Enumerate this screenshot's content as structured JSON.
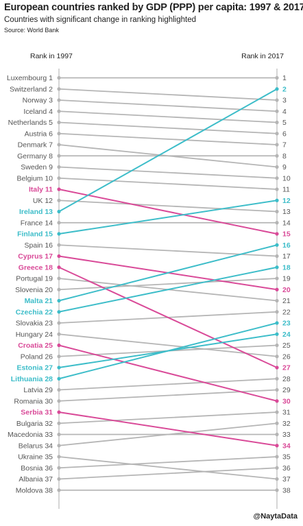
{
  "title": "European countries ranked by GDP (PPP) per capita: 1997 & 2017",
  "subtitle": "Countries with significant change in ranking highlighted",
  "source": "Source: World Bank",
  "credit": "@NaytaData",
  "colors": {
    "neutral": "#b5b5b5",
    "rise": "#3dbdc9",
    "fall": "#d94a98",
    "axis": "#c8c8c8",
    "text": "#555555"
  },
  "chart_data": {
    "type": "slope",
    "xlabel_left": "Rank in 1997",
    "xlabel_right": "Rank in 2017",
    "series": [
      {
        "country": "Luxembourg",
        "rank1997": 1,
        "rank2017": 1,
        "highlight": "none"
      },
      {
        "country": "Switzerland",
        "rank1997": 2,
        "rank2017": 3,
        "highlight": "none"
      },
      {
        "country": "Norway",
        "rank1997": 3,
        "rank2017": 4,
        "highlight": "none"
      },
      {
        "country": "Iceland",
        "rank1997": 4,
        "rank2017": 5,
        "highlight": "none"
      },
      {
        "country": "Netherlands",
        "rank1997": 5,
        "rank2017": 6,
        "highlight": "none"
      },
      {
        "country": "Austria",
        "rank1997": 6,
        "rank2017": 7,
        "highlight": "none"
      },
      {
        "country": "Denmark",
        "rank1997": 7,
        "rank2017": 9,
        "highlight": "none"
      },
      {
        "country": "Germany",
        "rank1997": 8,
        "rank2017": 8,
        "highlight": "none"
      },
      {
        "country": "Sweden",
        "rank1997": 9,
        "rank2017": 10,
        "highlight": "none"
      },
      {
        "country": "Belgium",
        "rank1997": 10,
        "rank2017": 11,
        "highlight": "none"
      },
      {
        "country": "Italy",
        "rank1997": 11,
        "rank2017": 15,
        "highlight": "fall"
      },
      {
        "country": "UK",
        "rank1997": 12,
        "rank2017": 13,
        "highlight": "none"
      },
      {
        "country": "Ireland",
        "rank1997": 13,
        "rank2017": 2,
        "highlight": "rise"
      },
      {
        "country": "France",
        "rank1997": 14,
        "rank2017": 14,
        "highlight": "none"
      },
      {
        "country": "Finland",
        "rank1997": 15,
        "rank2017": 12,
        "highlight": "rise"
      },
      {
        "country": "Spain",
        "rank1997": 16,
        "rank2017": 17,
        "highlight": "none"
      },
      {
        "country": "Cyprus",
        "rank1997": 17,
        "rank2017": 20,
        "highlight": "fall"
      },
      {
        "country": "Greece",
        "rank1997": 18,
        "rank2017": 27,
        "highlight": "fall"
      },
      {
        "country": "Portugal",
        "rank1997": 19,
        "rank2017": 21,
        "highlight": "none"
      },
      {
        "country": "Slovenia",
        "rank1997": 20,
        "rank2017": 19,
        "highlight": "none"
      },
      {
        "country": "Malta",
        "rank1997": 21,
        "rank2017": 16,
        "highlight": "rise"
      },
      {
        "country": "Czechia",
        "rank1997": 22,
        "rank2017": 18,
        "highlight": "rise"
      },
      {
        "country": "Slovakia",
        "rank1997": 23,
        "rank2017": 22,
        "highlight": "none"
      },
      {
        "country": "Hungary",
        "rank1997": 24,
        "rank2017": 26,
        "highlight": "none"
      },
      {
        "country": "Croatia",
        "rank1997": 25,
        "rank2017": 30,
        "highlight": "fall"
      },
      {
        "country": "Poland",
        "rank1997": 26,
        "rank2017": 25,
        "highlight": "none"
      },
      {
        "country": "Estonia",
        "rank1997": 27,
        "rank2017": 24,
        "highlight": "rise"
      },
      {
        "country": "Lithuania",
        "rank1997": 28,
        "rank2017": 23,
        "highlight": "rise"
      },
      {
        "country": "Latvia",
        "rank1997": 29,
        "rank2017": 28,
        "highlight": "none"
      },
      {
        "country": "Romania",
        "rank1997": 30,
        "rank2017": 29,
        "highlight": "none"
      },
      {
        "country": "Serbia",
        "rank1997": 31,
        "rank2017": 34,
        "highlight": "fall"
      },
      {
        "country": "Bulgaria",
        "rank1997": 32,
        "rank2017": 31,
        "highlight": "none"
      },
      {
        "country": "Macedonia",
        "rank1997": 33,
        "rank2017": 33,
        "highlight": "none"
      },
      {
        "country": "Belarus",
        "rank1997": 34,
        "rank2017": 32,
        "highlight": "none"
      },
      {
        "country": "Ukraine",
        "rank1997": 35,
        "rank2017": 37,
        "highlight": "none"
      },
      {
        "country": "Bosnia",
        "rank1997": 36,
        "rank2017": 35,
        "highlight": "none"
      },
      {
        "country": "Albania",
        "rank1997": 37,
        "rank2017": 36,
        "highlight": "none"
      },
      {
        "country": "Moldova",
        "rank1997": 38,
        "rank2017": 38,
        "highlight": "none"
      }
    ]
  }
}
